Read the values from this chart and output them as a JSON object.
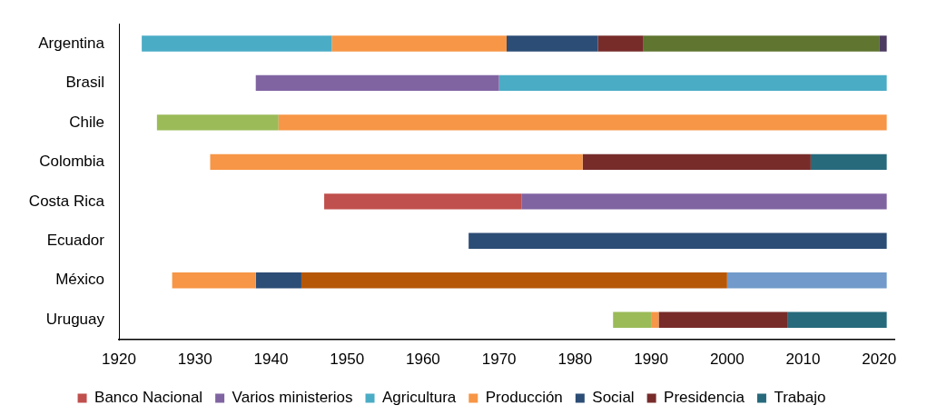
{
  "chart_data": {
    "type": "bar",
    "orientation": "horizontal",
    "categories": [
      "Argentina",
      "Brasil",
      "Chile",
      "Colombia",
      "Costa Rica",
      "Ecuador",
      "México",
      "Uruguay"
    ],
    "series": [
      {
        "name": "Banco Nacional",
        "color": "#c0504d",
        "base": [
          null,
          null,
          null,
          null,
          1947,
          null,
          null,
          null
        ],
        "values": [
          null,
          null,
          null,
          null,
          26,
          null,
          null,
          null
        ]
      },
      {
        "name": "Varios ministerios",
        "color": "#8064a2",
        "base": [
          null,
          1938,
          null,
          null,
          1973,
          null,
          null,
          null
        ],
        "values": [
          null,
          32,
          null,
          null,
          48,
          null,
          null,
          null
        ]
      },
      {
        "name": "Agricultura",
        "color": "#4bacc6",
        "base": [
          1923,
          1970,
          null,
          null,
          null,
          null,
          null,
          null
        ],
        "values": [
          25,
          51,
          null,
          null,
          null,
          null,
          null,
          null
        ]
      },
      {
        "name": "Producción",
        "color": "#f79646",
        "base": [
          1948,
          null,
          1941,
          1932,
          null,
          null,
          1927,
          1990
        ],
        "values": [
          23,
          null,
          80,
          49,
          null,
          null,
          11,
          1
        ]
      },
      {
        "name": "Social",
        "color": "#2c4d75",
        "base": [
          1971,
          null,
          null,
          null,
          null,
          1966,
          1938,
          null
        ],
        "values": [
          12,
          null,
          null,
          null,
          null,
          55,
          6,
          null
        ]
      },
      {
        "name": "Presidencia",
        "color": "#772c2a",
        "base": [
          1983,
          null,
          null,
          1981,
          null,
          null,
          null,
          1991
        ],
        "values": [
          6,
          null,
          null,
          30,
          null,
          null,
          null,
          17
        ]
      },
      {
        "name": "Trabajo",
        "color": "#276a7c",
        "base": [
          null,
          null,
          null,
          2011,
          null,
          null,
          null,
          2008
        ],
        "values": [
          null,
          null,
          null,
          10,
          null,
          null,
          null,
          13
        ]
      },
      {
        "color": "#9bbb59",
        "base": [
          null,
          null,
          1925,
          null,
          null,
          null,
          null,
          1985
        ],
        "values": [
          null,
          null,
          16,
          null,
          null,
          null,
          null,
          5
        ]
      },
      {
        "color": "#5f7530",
        "base": [
          1989,
          null,
          null,
          null,
          null,
          null,
          null,
          null
        ],
        "values": [
          31,
          null,
          null,
          null,
          null,
          null,
          null,
          null
        ]
      },
      {
        "color": "#4d3b62",
        "base": [
          2020,
          null,
          null,
          null,
          null,
          null,
          null,
          null
        ],
        "values": [
          1,
          null,
          null,
          null,
          null,
          null,
          null,
          null
        ]
      },
      {
        "color": "#b65708",
        "base": [
          null,
          null,
          null,
          null,
          null,
          null,
          1944,
          null
        ],
        "values": [
          null,
          null,
          null,
          null,
          null,
          null,
          56,
          null
        ]
      },
      {
        "color": "#729aca",
        "base": [
          null,
          null,
          null,
          null,
          null,
          null,
          2000,
          null
        ],
        "values": [
          null,
          null,
          null,
          null,
          null,
          null,
          21,
          null
        ]
      }
    ],
    "xlim": [
      1920,
      2022
    ],
    "xticks": [
      1920,
      1930,
      1940,
      1950,
      1960,
      1970,
      1980,
      1990,
      2000,
      2010,
      2020
    ],
    "legend": "bottom"
  }
}
